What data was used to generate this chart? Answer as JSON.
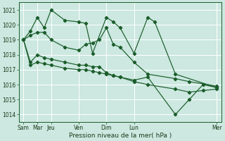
{
  "bg_color": "#cce8e0",
  "grid_color": "#ffffff",
  "line_color": "#1a5c2a",
  "xlabel": "Pression niveau de la mer( hPa )",
  "ylim": [
    1013.5,
    1021.5
  ],
  "yticks": [
    1014,
    1015,
    1016,
    1017,
    1018,
    1019,
    1020,
    1021
  ],
  "day_positions": [
    0,
    12,
    24,
    48,
    72,
    96,
    168
  ],
  "day_labels": [
    "Sam",
    "Mar",
    "Jeu",
    "Ven",
    "Dim",
    "Lun",
    "Mer"
  ],
  "s1_x": [
    0,
    6,
    12,
    18,
    24,
    36,
    48,
    54,
    60,
    72,
    78,
    84,
    96,
    108,
    114,
    132,
    168
  ],
  "s1_y": [
    1019.0,
    1019.6,
    1020.5,
    1019.8,
    1021.0,
    1020.3,
    1020.2,
    1020.1,
    1018.1,
    1020.5,
    1020.2,
    1019.8,
    1018.1,
    1020.5,
    1020.2,
    1016.7,
    1015.8
  ],
  "s2_x": [
    0,
    6,
    12,
    18,
    24,
    36,
    48,
    54,
    60,
    66,
    72,
    78,
    84,
    96,
    108,
    132,
    144,
    168
  ],
  "s2_y": [
    1019.0,
    1019.3,
    1019.5,
    1019.5,
    1019.0,
    1018.5,
    1018.3,
    1018.7,
    1018.8,
    1019.0,
    1019.8,
    1018.7,
    1018.5,
    1017.5,
    1016.7,
    1016.4,
    1016.2,
    1015.9
  ],
  "s3_x": [
    0,
    6,
    12,
    18,
    24,
    36,
    48,
    54,
    60,
    66,
    72,
    78,
    84,
    96,
    108,
    132,
    144,
    156,
    168
  ],
  "s3_y": [
    1019.0,
    1017.5,
    1018.0,
    1017.8,
    1017.7,
    1017.5,
    1017.3,
    1017.3,
    1017.2,
    1017.2,
    1016.8,
    1016.6,
    1016.5,
    1016.3,
    1016.5,
    1014.0,
    1015.0,
    1016.0,
    1015.8
  ],
  "s4_x": [
    0,
    6,
    12,
    18,
    24,
    36,
    48,
    54,
    60,
    66,
    72,
    78,
    84,
    96,
    108,
    132,
    144,
    156,
    168
  ],
  "s4_y": [
    1019.0,
    1017.3,
    1017.5,
    1017.4,
    1017.3,
    1017.1,
    1017.0,
    1017.0,
    1016.9,
    1016.8,
    1016.7,
    1016.6,
    1016.5,
    1016.2,
    1016.0,
    1015.7,
    1015.5,
    1015.6,
    1015.7
  ]
}
